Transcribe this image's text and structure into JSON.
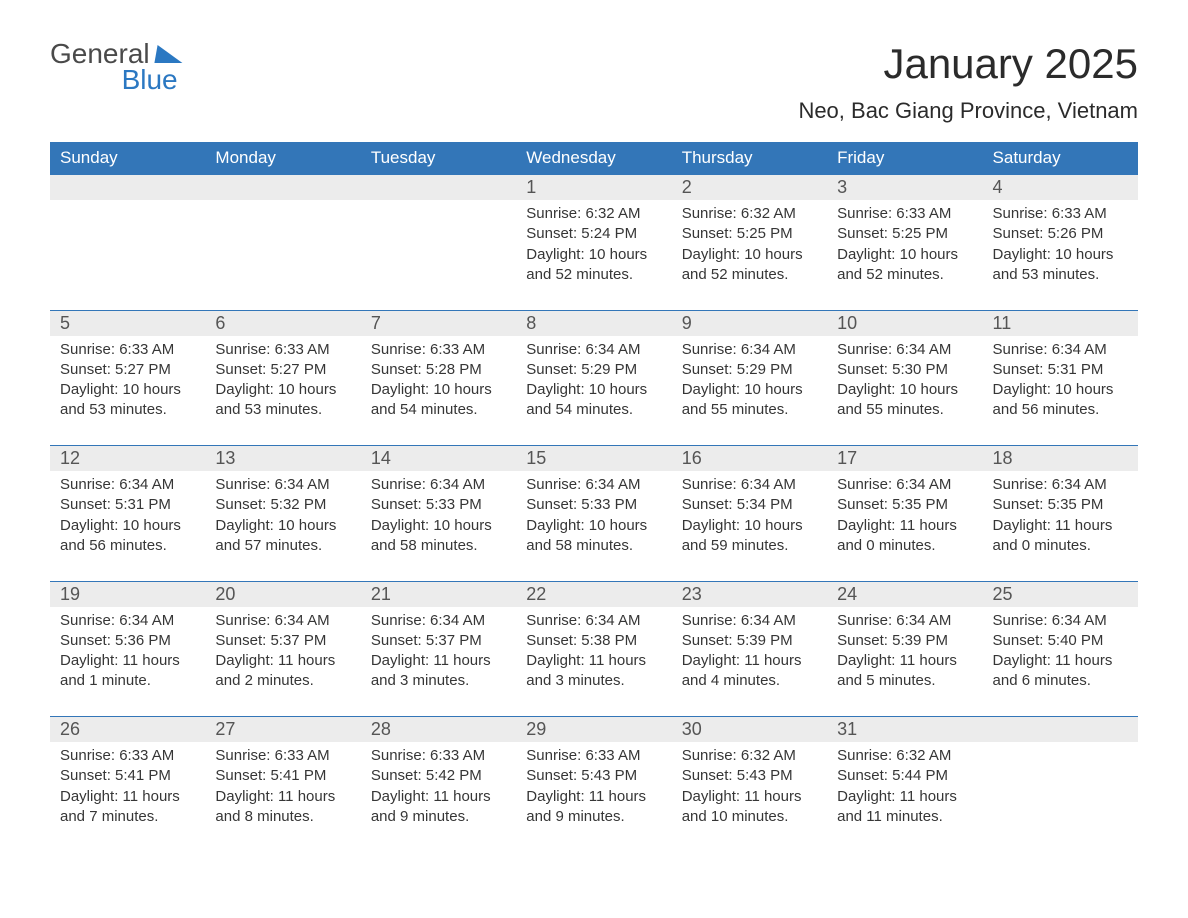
{
  "logo": {
    "top": "General",
    "bottom": "Blue"
  },
  "title": "January 2025",
  "location": "Neo, Bac Giang Province, Vietnam",
  "colors": {
    "header_bg": "#3376b8",
    "header_text": "#ffffff",
    "daynum_bg": "#ececec",
    "daynum_border": "#3376b8",
    "text": "#363636",
    "logo_accent": "#2b78c2"
  },
  "weekdays": [
    "Sunday",
    "Monday",
    "Tuesday",
    "Wednesday",
    "Thursday",
    "Friday",
    "Saturday"
  ],
  "weeks": [
    [
      null,
      null,
      null,
      {
        "day": "1",
        "sunrise": "Sunrise: 6:32 AM",
        "sunset": "Sunset: 5:24 PM",
        "daylight": "Daylight: 10 hours and 52 minutes."
      },
      {
        "day": "2",
        "sunrise": "Sunrise: 6:32 AM",
        "sunset": "Sunset: 5:25 PM",
        "daylight": "Daylight: 10 hours and 52 minutes."
      },
      {
        "day": "3",
        "sunrise": "Sunrise: 6:33 AM",
        "sunset": "Sunset: 5:25 PM",
        "daylight": "Daylight: 10 hours and 52 minutes."
      },
      {
        "day": "4",
        "sunrise": "Sunrise: 6:33 AM",
        "sunset": "Sunset: 5:26 PM",
        "daylight": "Daylight: 10 hours and 53 minutes."
      }
    ],
    [
      {
        "day": "5",
        "sunrise": "Sunrise: 6:33 AM",
        "sunset": "Sunset: 5:27 PM",
        "daylight": "Daylight: 10 hours and 53 minutes."
      },
      {
        "day": "6",
        "sunrise": "Sunrise: 6:33 AM",
        "sunset": "Sunset: 5:27 PM",
        "daylight": "Daylight: 10 hours and 53 minutes."
      },
      {
        "day": "7",
        "sunrise": "Sunrise: 6:33 AM",
        "sunset": "Sunset: 5:28 PM",
        "daylight": "Daylight: 10 hours and 54 minutes."
      },
      {
        "day": "8",
        "sunrise": "Sunrise: 6:34 AM",
        "sunset": "Sunset: 5:29 PM",
        "daylight": "Daylight: 10 hours and 54 minutes."
      },
      {
        "day": "9",
        "sunrise": "Sunrise: 6:34 AM",
        "sunset": "Sunset: 5:29 PM",
        "daylight": "Daylight: 10 hours and 55 minutes."
      },
      {
        "day": "10",
        "sunrise": "Sunrise: 6:34 AM",
        "sunset": "Sunset: 5:30 PM",
        "daylight": "Daylight: 10 hours and 55 minutes."
      },
      {
        "day": "11",
        "sunrise": "Sunrise: 6:34 AM",
        "sunset": "Sunset: 5:31 PM",
        "daylight": "Daylight: 10 hours and 56 minutes."
      }
    ],
    [
      {
        "day": "12",
        "sunrise": "Sunrise: 6:34 AM",
        "sunset": "Sunset: 5:31 PM",
        "daylight": "Daylight: 10 hours and 56 minutes."
      },
      {
        "day": "13",
        "sunrise": "Sunrise: 6:34 AM",
        "sunset": "Sunset: 5:32 PM",
        "daylight": "Daylight: 10 hours and 57 minutes."
      },
      {
        "day": "14",
        "sunrise": "Sunrise: 6:34 AM",
        "sunset": "Sunset: 5:33 PM",
        "daylight": "Daylight: 10 hours and 58 minutes."
      },
      {
        "day": "15",
        "sunrise": "Sunrise: 6:34 AM",
        "sunset": "Sunset: 5:33 PM",
        "daylight": "Daylight: 10 hours and 58 minutes."
      },
      {
        "day": "16",
        "sunrise": "Sunrise: 6:34 AM",
        "sunset": "Sunset: 5:34 PM",
        "daylight": "Daylight: 10 hours and 59 minutes."
      },
      {
        "day": "17",
        "sunrise": "Sunrise: 6:34 AM",
        "sunset": "Sunset: 5:35 PM",
        "daylight": "Daylight: 11 hours and 0 minutes."
      },
      {
        "day": "18",
        "sunrise": "Sunrise: 6:34 AM",
        "sunset": "Sunset: 5:35 PM",
        "daylight": "Daylight: 11 hours and 0 minutes."
      }
    ],
    [
      {
        "day": "19",
        "sunrise": "Sunrise: 6:34 AM",
        "sunset": "Sunset: 5:36 PM",
        "daylight": "Daylight: 11 hours and 1 minute."
      },
      {
        "day": "20",
        "sunrise": "Sunrise: 6:34 AM",
        "sunset": "Sunset: 5:37 PM",
        "daylight": "Daylight: 11 hours and 2 minutes."
      },
      {
        "day": "21",
        "sunrise": "Sunrise: 6:34 AM",
        "sunset": "Sunset: 5:37 PM",
        "daylight": "Daylight: 11 hours and 3 minutes."
      },
      {
        "day": "22",
        "sunrise": "Sunrise: 6:34 AM",
        "sunset": "Sunset: 5:38 PM",
        "daylight": "Daylight: 11 hours and 3 minutes."
      },
      {
        "day": "23",
        "sunrise": "Sunrise: 6:34 AM",
        "sunset": "Sunset: 5:39 PM",
        "daylight": "Daylight: 11 hours and 4 minutes."
      },
      {
        "day": "24",
        "sunrise": "Sunrise: 6:34 AM",
        "sunset": "Sunset: 5:39 PM",
        "daylight": "Daylight: 11 hours and 5 minutes."
      },
      {
        "day": "25",
        "sunrise": "Sunrise: 6:34 AM",
        "sunset": "Sunset: 5:40 PM",
        "daylight": "Daylight: 11 hours and 6 minutes."
      }
    ],
    [
      {
        "day": "26",
        "sunrise": "Sunrise: 6:33 AM",
        "sunset": "Sunset: 5:41 PM",
        "daylight": "Daylight: 11 hours and 7 minutes."
      },
      {
        "day": "27",
        "sunrise": "Sunrise: 6:33 AM",
        "sunset": "Sunset: 5:41 PM",
        "daylight": "Daylight: 11 hours and 8 minutes."
      },
      {
        "day": "28",
        "sunrise": "Sunrise: 6:33 AM",
        "sunset": "Sunset: 5:42 PM",
        "daylight": "Daylight: 11 hours and 9 minutes."
      },
      {
        "day": "29",
        "sunrise": "Sunrise: 6:33 AM",
        "sunset": "Sunset: 5:43 PM",
        "daylight": "Daylight: 11 hours and 9 minutes."
      },
      {
        "day": "30",
        "sunrise": "Sunrise: 6:32 AM",
        "sunset": "Sunset: 5:43 PM",
        "daylight": "Daylight: 11 hours and 10 minutes."
      },
      {
        "day": "31",
        "sunrise": "Sunrise: 6:32 AM",
        "sunset": "Sunset: 5:44 PM",
        "daylight": "Daylight: 11 hours and 11 minutes."
      },
      null
    ]
  ]
}
